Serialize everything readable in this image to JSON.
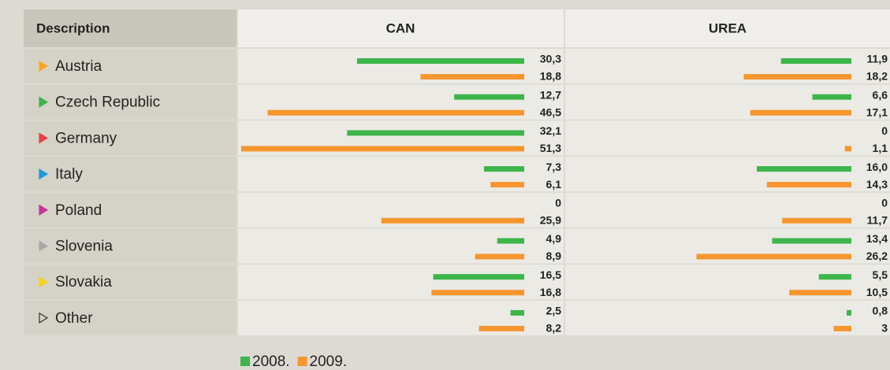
{
  "columns": [
    "Description",
    "CAN",
    "UREA"
  ],
  "legend": [
    {
      "name": "2008.",
      "color": "#3db54a"
    },
    {
      "name": "2009.",
      "color": "#f7962e"
    }
  ],
  "rows": [
    {
      "label": "Austria",
      "marker": "#f7a623",
      "values": [
        [
          30.3,
          18.8
        ],
        [
          11.9,
          18.2
        ]
      ],
      "value_labels": [
        [
          "30,3",
          "18,8"
        ],
        [
          "11,9",
          "18,2"
        ]
      ]
    },
    {
      "label": "Czech Republic",
      "marker": "#3db54a",
      "values": [
        [
          12.7,
          46.5
        ],
        [
          6.6,
          17.1
        ]
      ],
      "value_labels": [
        [
          "12,7",
          "46,5"
        ],
        [
          "6,6",
          "17,1"
        ]
      ]
    },
    {
      "label": "Germany",
      "marker": "#e8404a",
      "values": [
        [
          32.1,
          51.3
        ],
        [
          0,
          1.1
        ]
      ],
      "value_labels": [
        [
          "32,1",
          "51,3"
        ],
        [
          "0",
          "1,1"
        ]
      ]
    },
    {
      "label": "Italy",
      "marker": "#1e9ad6",
      "values": [
        [
          7.3,
          6.1
        ],
        [
          16.0,
          14.3
        ]
      ],
      "value_labels": [
        [
          "7,3",
          "6,1"
        ],
        [
          "16,0",
          "14,3"
        ]
      ]
    },
    {
      "label": "Poland",
      "marker": "#c5359a",
      "values": [
        [
          0,
          25.9
        ],
        [
          0,
          11.7
        ]
      ],
      "value_labels": [
        [
          "0",
          "25,9"
        ],
        [
          "0",
          "11,7"
        ]
      ]
    },
    {
      "label": "Slovenia",
      "marker": "#a8a8a8",
      "values": [
        [
          4.9,
          8.9
        ],
        [
          13.4,
          26.2
        ]
      ],
      "value_labels": [
        [
          "4,9",
          "8,9"
        ],
        [
          "13,4",
          "26,2"
        ]
      ]
    },
    {
      "label": "Slovakia",
      "marker": "#f5d31c",
      "values": [
        [
          16.5,
          16.8
        ],
        [
          5.5,
          10.5
        ]
      ],
      "value_labels": [
        [
          "16,5",
          "16,8"
        ],
        [
          "5,5",
          "10,5"
        ]
      ]
    },
    {
      "label": "Other",
      "marker": "#333333",
      "values": [
        [
          2.5,
          8.2
        ],
        [
          0.8,
          3
        ]
      ],
      "value_labels": [
        [
          "2,5",
          "8,2"
        ],
        [
          "0,8",
          "3"
        ]
      ]
    }
  ]
}
